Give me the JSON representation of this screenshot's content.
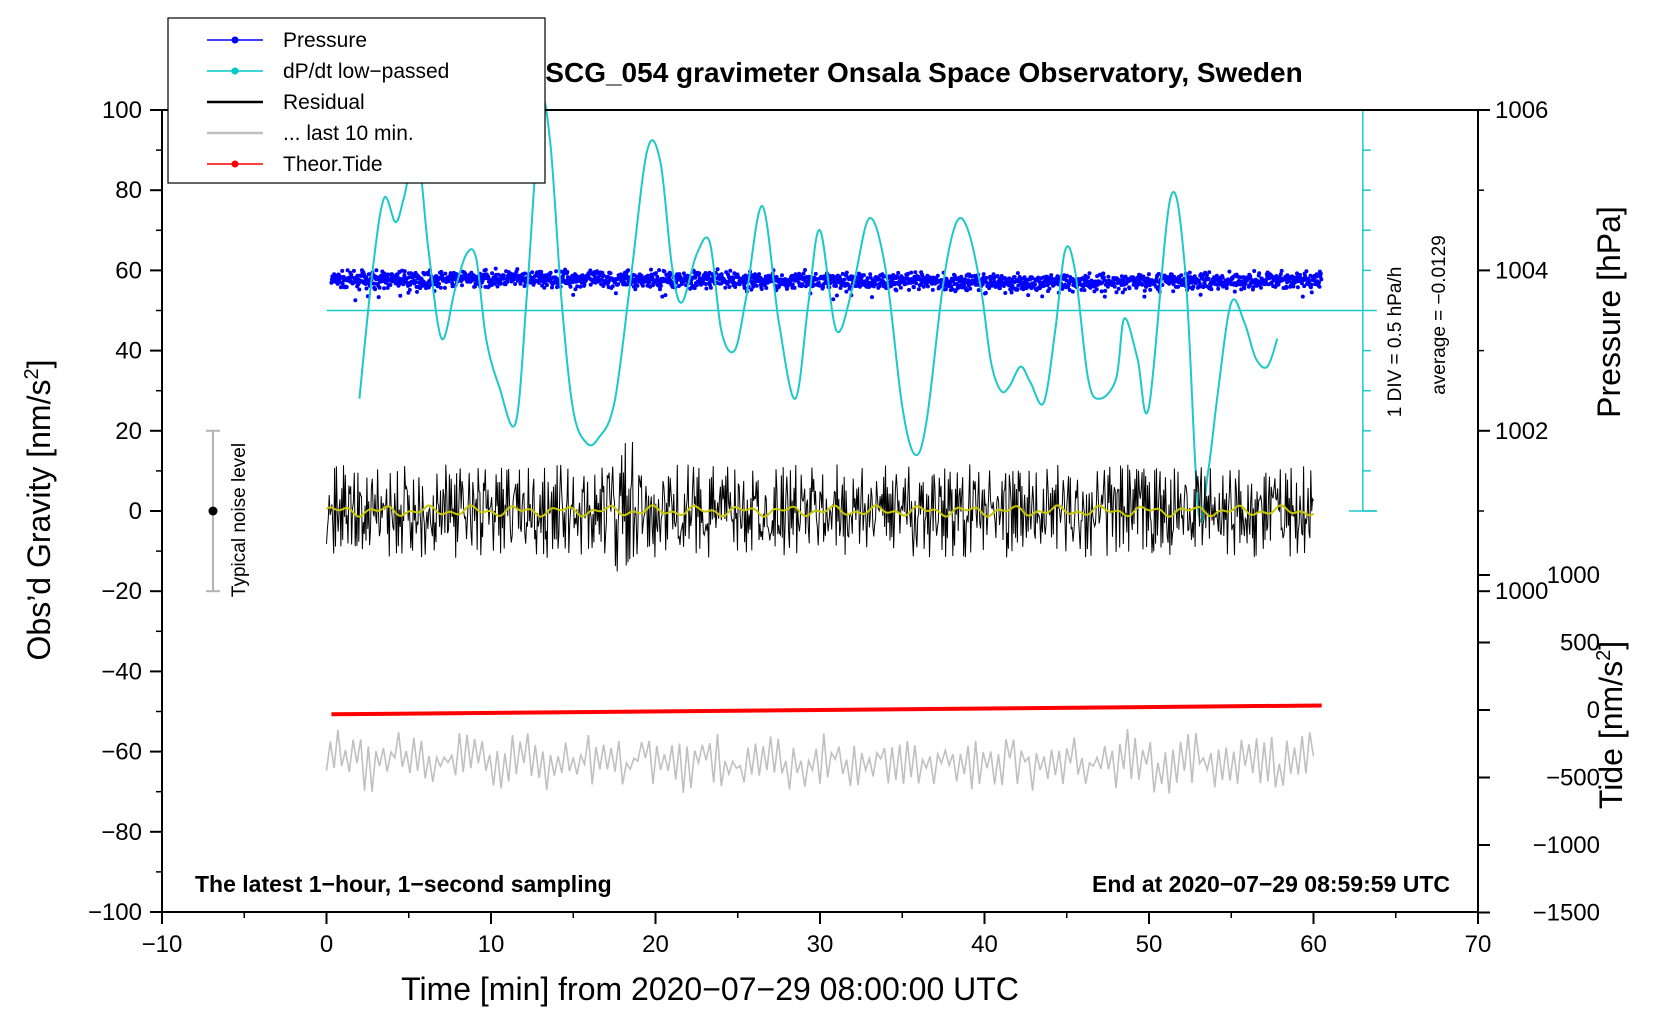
{
  "chart_data": {
    "type": "line",
    "title": "SCG_054 gravimeter Onsala Space Observatory, Sweden",
    "xlabel": "Time [min] from 2020−07−29 08:00:00 UTC",
    "ylabel_main": "Obs’d Gravity [nm/s",
    "ylabel_sup": "2",
    "ylabel_close": "]",
    "ylabel_pressure": "Pressure [hPa]",
    "ylabel_tide": "Tide [nm/s",
    "ylabel_tide_sup": "2",
    "ylabel_tide_close": "]",
    "xlim": [
      -10,
      70
    ],
    "ylim": [
      -100,
      100
    ],
    "x_ticks": [
      "−10",
      "0",
      "10",
      "20",
      "30",
      "40",
      "50",
      "60",
      "70"
    ],
    "y_ticks": [
      "100",
      "80",
      "60",
      "40",
      "20",
      "0",
      "−20",
      "−40",
      "−60",
      "−80",
      "−100"
    ],
    "pressure_ticks": [
      {
        "value": 1006,
        "label": "1006"
      },
      {
        "value": 1004,
        "label": "1004"
      },
      {
        "value": 1002,
        "label": "1002"
      },
      {
        "value": 1000,
        "label": "1000"
      }
    ],
    "tide_ticks": [
      {
        "value": 1000,
        "label": "1000"
      },
      {
        "value": 500,
        "label": "500"
      },
      {
        "value": 0,
        "label": "0"
      },
      {
        "value": -500,
        "label": "−500"
      },
      {
        "value": -1000,
        "label": "−1000"
      },
      {
        "value": -1500,
        "label": "−1500"
      }
    ],
    "legend": [
      {
        "label": "Pressure",
        "color": "#0000ff",
        "marker": true
      },
      {
        "label": "dP/dt low−passed",
        "color": "#00c8c8",
        "marker": true
      },
      {
        "label": "Residual",
        "color": "#000000",
        "marker": false
      },
      {
        "label": "... last 10 min.",
        "color": "#c0c0c0",
        "marker": false
      },
      {
        "label": "Theor.Tide",
        "color": "#ff0000",
        "marker": true
      }
    ],
    "noise_label": "Typical noise level",
    "noise_range": [
      -20,
      20
    ],
    "dpdt_scale_label": "1 DIV = 0.5 hPa/h",
    "dpdt_average_label": "average = −0.0129",
    "note_left": "The latest 1−hour, 1−second sampling",
    "note_right": "End at 2020−07−29 08:59:59 UTC",
    "series": [
      {
        "name": "dP/dt low-passed",
        "color": "#1ec8c8",
        "axis": "gravity",
        "x": [
          2,
          2.8,
          3.5,
          4.2,
          4.7,
          5.5,
          6.2,
          7,
          7.8,
          8.5,
          9.1,
          9.7,
          10.5,
          11.5,
          12.2,
          13,
          13.6,
          14.3,
          15,
          15.8,
          16.5,
          17.5,
          18.5,
          19.5,
          20.3,
          21,
          21.6,
          22.5,
          23.3,
          24,
          24.8,
          25.5,
          26.5,
          27.5,
          28.5,
          29.3,
          30,
          31,
          32,
          33,
          34,
          35,
          35.8,
          36.5,
          37.5,
          38.3,
          39,
          39.8,
          40.4,
          41,
          41.5,
          42.2,
          42.8,
          43.6,
          44.3,
          44.9,
          45.5,
          46.3,
          47,
          48,
          48.5,
          49.3,
          50,
          51.3,
          52.2,
          53,
          53.6,
          54.2,
          55,
          55.8,
          56.5,
          57.2,
          57.8
        ],
        "y": [
          28,
          60,
          78,
          72,
          78,
          90,
          65,
          43,
          55,
          64,
          63,
          43,
          31,
          22,
          55,
          100,
          92,
          52,
          25,
          17,
          18,
          27,
          58,
          90,
          87,
          61,
          52,
          64,
          67,
          45,
          40,
          53,
          76,
          47,
          28,
          52,
          70,
          45,
          56,
          73,
          60,
          26,
          14,
          23,
          57,
          72,
          70,
          55,
          37,
          30,
          31,
          36,
          32,
          27,
          45,
          65,
          60,
          33,
          28,
          33,
          48,
          38,
          26,
          78,
          60,
          0,
          10,
          30,
          52,
          47,
          38,
          36,
          43
        ]
      }
    ],
    "pressure_band": {
      "axis": "gravity",
      "center": 57.5,
      "spread": 2.5,
      "x_start": 0.3,
      "x_end": 60.5
    },
    "residual": {
      "axis": "gravity",
      "center": 0,
      "amplitude": 9,
      "x_start": 0,
      "x_end": 60
    },
    "theor_tide": {
      "x": [
        0.3,
        60.5
      ],
      "y": [
        -50.7,
        -48.5
      ]
    },
    "last_10_min": {
      "center": -62.5,
      "amplitude": 7,
      "x_start": 0,
      "x_end": 60
    },
    "zero_line": 50
  }
}
